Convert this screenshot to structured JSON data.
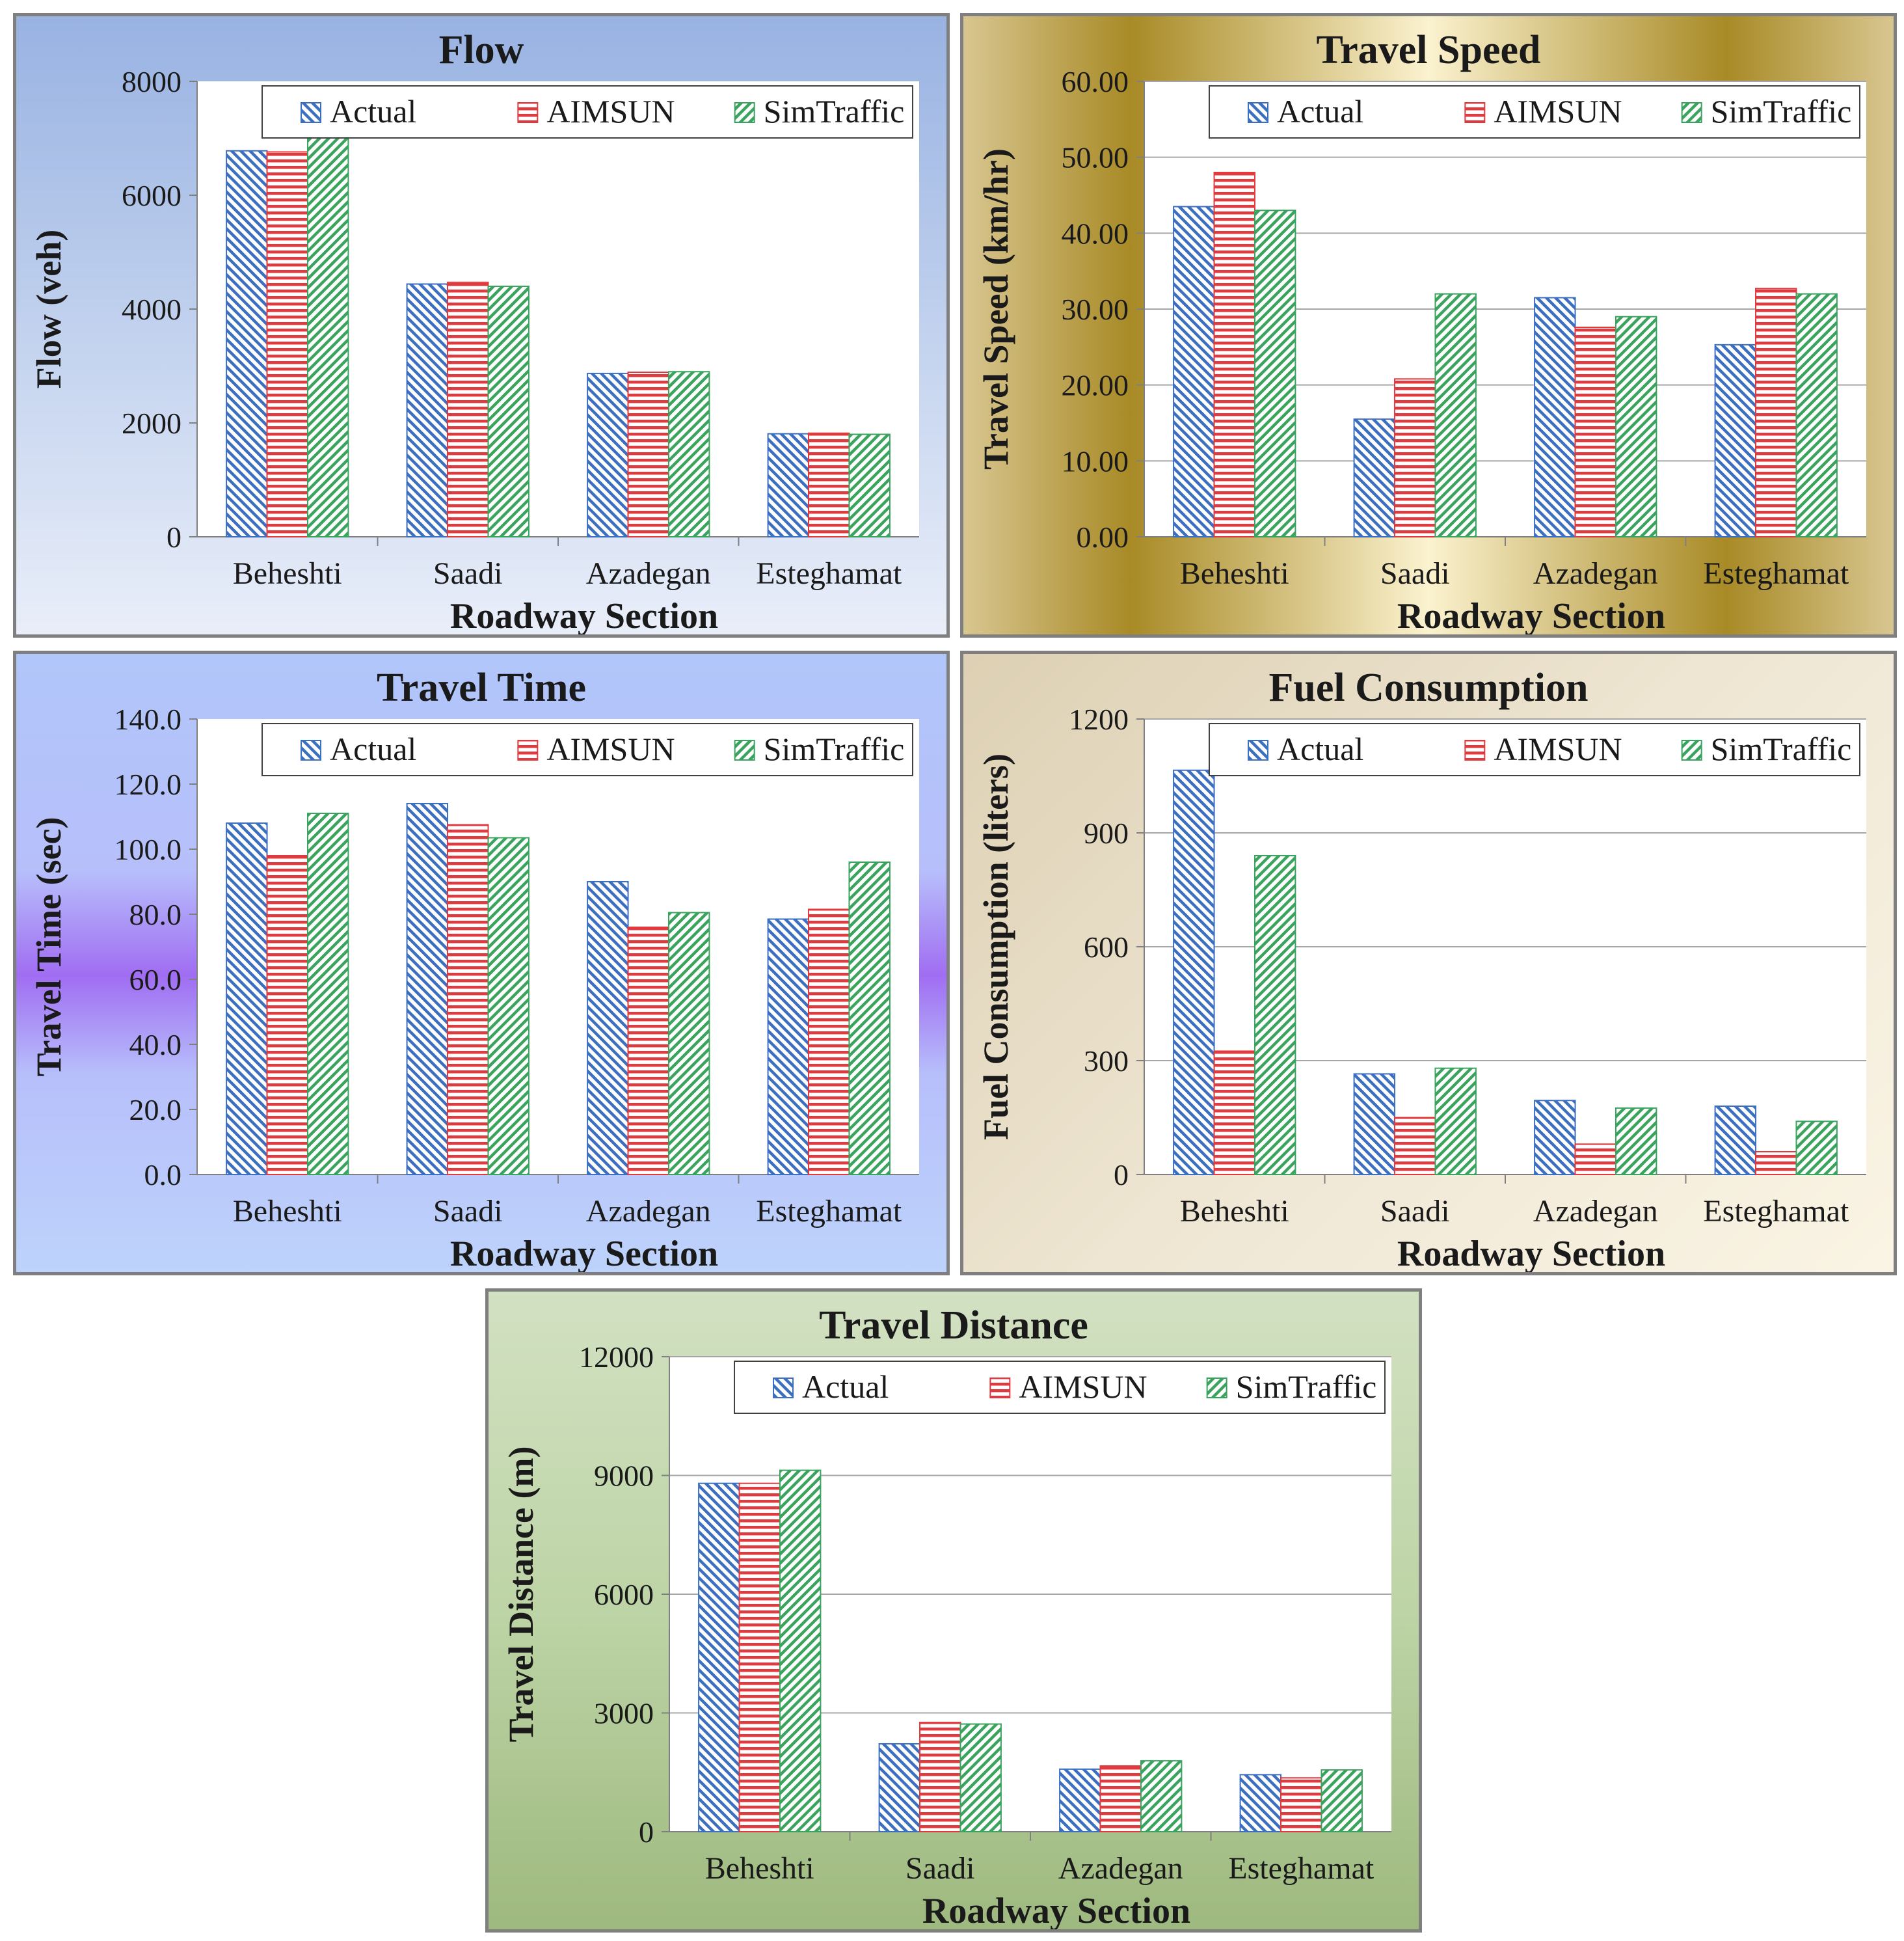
{
  "legend": [
    "Actual",
    "AIMSUN",
    "SimTraffic"
  ],
  "colors": {
    "actual": "#3c6fc0",
    "aimsun": "#e03a3e",
    "simtraffic": "#3aa35e",
    "plot_bg": "#ffffff",
    "grid": "#a6a6a6",
    "axis": "#808080",
    "text": "#1a1a1a"
  },
  "chart_data": [
    {
      "id": "flow",
      "type": "bar",
      "title": "Flow",
      "xlabel": "Roadway Section",
      "ylabel": "Flow (veh)",
      "categories": [
        "Beheshti",
        "Saadi",
        "Azadegan",
        "Esteghamat"
      ],
      "ylim": [
        0,
        8000
      ],
      "yticks": [
        "0",
        "2000",
        "4000",
        "6000",
        "8000"
      ],
      "grid": false,
      "legend_position": "top",
      "series": [
        {
          "name": "Actual",
          "values": [
            6780,
            4440,
            2870,
            1810
          ]
        },
        {
          "name": "AIMSUN",
          "values": [
            6760,
            4470,
            2890,
            1820
          ]
        },
        {
          "name": "SimTraffic",
          "values": [
            7130,
            4400,
            2900,
            1800
          ]
        }
      ]
    },
    {
      "id": "speed",
      "type": "bar",
      "title": "Travel Speed",
      "xlabel": "Roadway Section",
      "ylabel": "Travel Speed (km/hr)",
      "categories": [
        "Beheshti",
        "Saadi",
        "Azadegan",
        "Esteghamat"
      ],
      "ylim": [
        0,
        60
      ],
      "yticks": [
        "0.00",
        "10.00",
        "20.00",
        "30.00",
        "40.00",
        "50.00",
        "60.00"
      ],
      "grid": true,
      "legend_position": "top",
      "series": [
        {
          "name": "Actual",
          "values": [
            43.5,
            15.5,
            31.5,
            25.3
          ]
        },
        {
          "name": "AIMSUN",
          "values": [
            48.0,
            20.8,
            27.6,
            32.7
          ]
        },
        {
          "name": "SimTraffic",
          "values": [
            43.0,
            32.0,
            29.0,
            32.0
          ]
        }
      ]
    },
    {
      "id": "time",
      "type": "bar",
      "title": "Travel Time",
      "xlabel": "Roadway Section",
      "ylabel": "Travel Time (sec)",
      "categories": [
        "Beheshti",
        "Saadi",
        "Azadegan",
        "Esteghamat"
      ],
      "ylim": [
        0,
        140
      ],
      "yticks": [
        "0.0",
        "20.0",
        "40.0",
        "60.0",
        "80.0",
        "100.0",
        "120.0",
        "140.0"
      ],
      "grid": false,
      "legend_position": "top",
      "series": [
        {
          "name": "Actual",
          "values": [
            108.0,
            114.0,
            90.0,
            78.5
          ]
        },
        {
          "name": "AIMSUN",
          "values": [
            98.0,
            107.5,
            76.0,
            81.5
          ]
        },
        {
          "name": "SimTraffic",
          "values": [
            111.0,
            103.5,
            80.5,
            96.0
          ]
        }
      ]
    },
    {
      "id": "fuel",
      "type": "bar",
      "title": "Fuel Consumption",
      "xlabel": "Roadway Section",
      "ylabel": "Fuel Consumption (liters)",
      "categories": [
        "Beheshti",
        "Saadi",
        "Azadegan",
        "Esteghamat"
      ],
      "ylim": [
        0,
        1200
      ],
      "ymax_axis": 1200,
      "yticks": [
        "0",
        "300",
        "600",
        "900",
        "1200"
      ],
      "grid": true,
      "legend_position": "top",
      "series": [
        {
          "name": "Actual",
          "values": [
            1065,
            265,
            195,
            180
          ]
        },
        {
          "name": "AIMSUN",
          "values": [
            325,
            150,
            80,
            60
          ]
        },
        {
          "name": "SimTraffic",
          "values": [
            840,
            280,
            175,
            140
          ]
        }
      ]
    },
    {
      "id": "dist",
      "type": "bar",
      "title": "Travel Distance",
      "xlabel": "Roadway Section",
      "ylabel": "Travel Distance (m)",
      "categories": [
        "Beheshti",
        "Saadi",
        "Azadegan",
        "Esteghamat"
      ],
      "ylim": [
        0,
        12000
      ],
      "yticks": [
        "0",
        "3000",
        "6000",
        "9000",
        "12000"
      ],
      "grid": true,
      "legend_position": "top",
      "series": [
        {
          "name": "Actual",
          "values": [
            8800,
            2220,
            1580,
            1440
          ]
        },
        {
          "name": "AIMSUN",
          "values": [
            8800,
            2760,
            1660,
            1360
          ]
        },
        {
          "name": "SimTraffic",
          "values": [
            9130,
            2720,
            1790,
            1560
          ]
        }
      ]
    }
  ]
}
